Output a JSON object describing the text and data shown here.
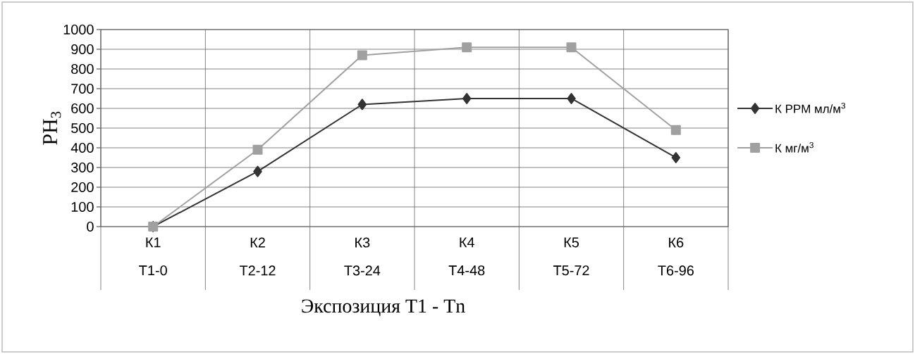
{
  "chart_data": {
    "type": "line",
    "xlabel": "Экспозиция Т1 - Тn",
    "ylabel": "PH$_{3}$",
    "categories": [
      "К1 Т1-0",
      "К2 Т2-12",
      "К3 Т3-24",
      "К4 Т4-48",
      "К5 Т5-72",
      "К6 Т6-96"
    ],
    "series": [
      {
        "name": "К PPM мл/м$^{3}$",
        "color": "#333333",
        "marker": "diamond",
        "values": [
          0,
          280,
          620,
          650,
          650,
          350
        ]
      },
      {
        "name": "К мг/м$^{3}$",
        "color": "#a0a0a0",
        "marker": "square",
        "values": [
          0,
          390,
          870,
          910,
          910,
          490
        ]
      }
    ],
    "ylim": [
      0,
      1000
    ],
    "yticks": [
      0,
      100,
      200,
      300,
      400,
      500,
      600,
      700,
      800,
      900,
      1000
    ],
    "grid": true,
    "legend": "right"
  }
}
